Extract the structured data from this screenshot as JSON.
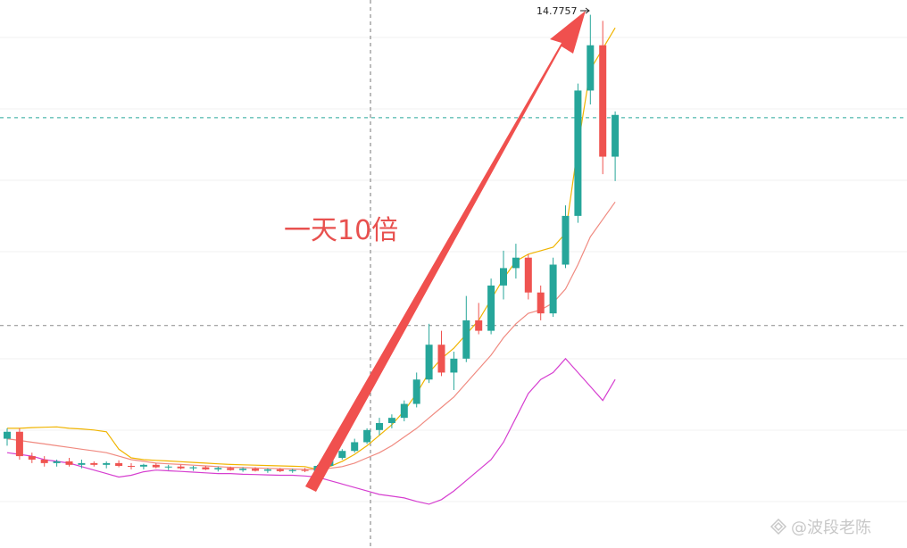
{
  "chart_data": {
    "type": "candlestick",
    "annotation": "一天10倍",
    "watermark": "@波段老陈",
    "ylim": [
      0,
      15.2
    ],
    "up_color": "#26a69a",
    "down_color": "#ef5350",
    "open": [
      2.6,
      2.8,
      2.1,
      2.0,
      1.9,
      1.95,
      1.85,
      1.9,
      1.85,
      1.9,
      1.82,
      1.8,
      1.85,
      1.78,
      1.8,
      1.75,
      1.78,
      1.72,
      1.76,
      1.7,
      1.74,
      1.68,
      1.72,
      1.67,
      1.7,
      1.68,
      1.82,
      2.05,
      2.25,
      2.5,
      2.85,
      3.05,
      3.2,
      3.6,
      4.3,
      5.3,
      4.5,
      4.9,
      6.0,
      5.7,
      7.0,
      7.5,
      7.8,
      6.8,
      6.2,
      7.6,
      9.0,
      12.6,
      13.9,
      10.7
    ],
    "high": [
      2.9,
      2.9,
      2.2,
      2.1,
      2.0,
      2.05,
      2.0,
      1.95,
      1.95,
      1.98,
      1.9,
      1.88,
      1.9,
      1.85,
      1.85,
      1.82,
      1.82,
      1.8,
      1.8,
      1.78,
      1.78,
      1.75,
      1.76,
      1.74,
      1.76,
      1.85,
      2.1,
      2.3,
      2.6,
      2.9,
      3.2,
      3.3,
      3.7,
      4.5,
      5.9,
      5.7,
      5.1,
      6.7,
      6.5,
      7.2,
      8.0,
      8.2,
      7.9,
      7.0,
      7.8,
      9.3,
      12.8,
      14.7757,
      14.6,
      12.0
    ],
    "low": [
      2.4,
      2.0,
      1.9,
      1.8,
      1.8,
      1.8,
      1.75,
      1.8,
      1.75,
      1.78,
      1.72,
      1.72,
      1.75,
      1.7,
      1.72,
      1.68,
      1.7,
      1.66,
      1.68,
      1.65,
      1.66,
      1.62,
      1.64,
      1.62,
      1.64,
      1.65,
      1.8,
      2.0,
      2.2,
      2.45,
      2.7,
      2.9,
      3.1,
      3.5,
      4.2,
      4.4,
      4.0,
      4.8,
      5.6,
      5.6,
      6.6,
      7.2,
      6.6,
      6.0,
      6.1,
      7.5,
      8.8,
      12.2,
      10.2,
      10.0
    ],
    "close": [
      2.8,
      2.1,
      2.0,
      1.9,
      1.95,
      1.85,
      1.9,
      1.85,
      1.9,
      1.82,
      1.8,
      1.85,
      1.78,
      1.8,
      1.75,
      1.78,
      1.72,
      1.76,
      1.7,
      1.74,
      1.68,
      1.72,
      1.67,
      1.7,
      1.68,
      1.82,
      2.05,
      2.25,
      2.5,
      2.85,
      3.05,
      3.2,
      3.6,
      4.3,
      5.3,
      4.5,
      4.9,
      6.0,
      5.7,
      7.0,
      7.5,
      7.8,
      6.8,
      6.2,
      7.6,
      9.0,
      12.6,
      13.9,
      10.7,
      11.9
    ],
    "series": [
      {
        "color": "#f0b400",
        "values": [
          2.9,
          2.9,
          2.92,
          2.93,
          2.94,
          2.9,
          2.88,
          2.85,
          2.8,
          2.3,
          2.05,
          2.0,
          1.98,
          1.96,
          1.94,
          1.92,
          1.9,
          1.88,
          1.86,
          1.85,
          1.84,
          1.83,
          1.82,
          1.81,
          1.8,
          1.72,
          1.8,
          1.95,
          2.15,
          2.4,
          2.7,
          3.0,
          3.4,
          3.9,
          4.5,
          4.9,
          5.2,
          5.6,
          6.0,
          6.6,
          7.2,
          7.7,
          7.9,
          8.0,
          8.1,
          8.5,
          11.0,
          13.2,
          13.8,
          14.4
        ]
      },
      {
        "color": "#f08a80",
        "values": [
          2.6,
          2.55,
          2.5,
          2.45,
          2.4,
          2.35,
          2.3,
          2.25,
          2.2,
          2.1,
          2.0,
          1.95,
          1.9,
          1.88,
          1.86,
          1.84,
          1.82,
          1.8,
          1.78,
          1.77,
          1.76,
          1.75,
          1.74,
          1.73,
          1.72,
          1.72,
          1.75,
          1.8,
          1.9,
          2.05,
          2.2,
          2.4,
          2.65,
          2.9,
          3.2,
          3.5,
          3.8,
          4.2,
          4.6,
          5.0,
          5.5,
          5.9,
          6.2,
          6.3,
          6.5,
          6.9,
          7.6,
          8.4,
          8.9,
          9.4
        ]
      },
      {
        "color": "#d63fd0",
        "values": [
          2.2,
          2.15,
          2.1,
          2.0,
          1.95,
          1.9,
          1.8,
          1.7,
          1.6,
          1.5,
          1.55,
          1.65,
          1.7,
          1.68,
          1.66,
          1.64,
          1.62,
          1.6,
          1.6,
          1.58,
          1.57,
          1.56,
          1.55,
          1.55,
          1.53,
          1.5,
          1.4,
          1.3,
          1.2,
          1.1,
          1.0,
          0.95,
          0.9,
          0.8,
          0.72,
          0.85,
          1.1,
          1.4,
          1.7,
          2.0,
          2.5,
          3.2,
          3.9,
          4.3,
          4.5,
          4.9,
          4.5,
          4.1,
          3.7,
          4.3
        ]
      }
    ],
    "hlines": [
      {
        "value": 11.82,
        "color": "#26a69a"
      },
      {
        "value": 5.85,
        "color": "#8a8a8a"
      }
    ]
  }
}
